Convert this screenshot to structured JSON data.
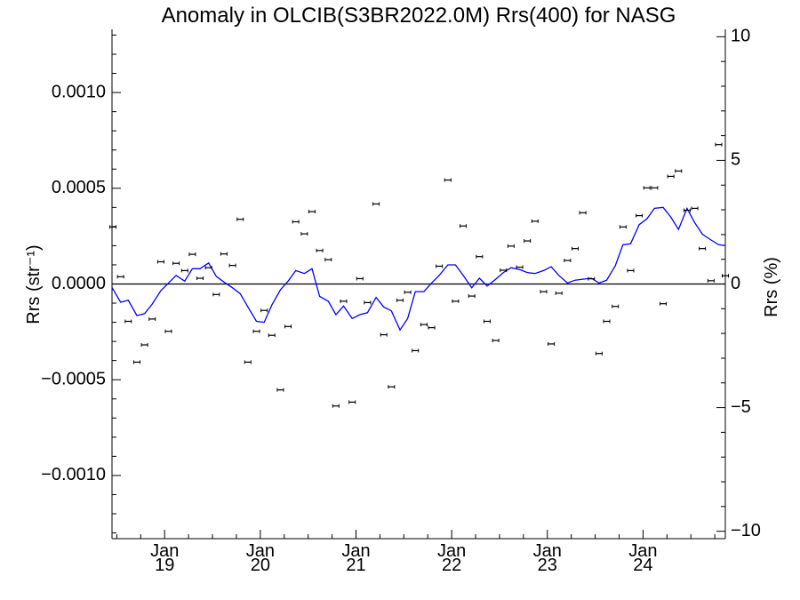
{
  "chart_data": {
    "type": "line",
    "title": "Anomaly in OLCIB(S3BR2022.0M) Rrs(400) for NASG",
    "ylabel": "Rrs (str⁻¹)",
    "ylabel_right": "Rrs (%)",
    "xlabel": "",
    "x_units": "decimal year (years 2018-2024)",
    "xlim": [
      2018.45,
      2024.86
    ],
    "ylim": [
      -0.00133,
      0.00133
    ],
    "ylim_right": [
      -10.3,
      10.3
    ],
    "x_ticks": [
      {
        "x": 2019.0,
        "label": "Jan",
        "sublabel": "19"
      },
      {
        "x": 2020.0,
        "label": "Jan",
        "sublabel": "20"
      },
      {
        "x": 2021.0,
        "label": "Jan",
        "sublabel": "21"
      },
      {
        "x": 2022.0,
        "label": "Jan",
        "sublabel": "22"
      },
      {
        "x": 2023.0,
        "label": "Jan",
        "sublabel": "23"
      },
      {
        "x": 2024.0,
        "label": "Jan",
        "sublabel": "24"
      }
    ],
    "y_ticks_left": [
      {
        "v": 0.001,
        "label": "0.0010"
      },
      {
        "v": 0.0005,
        "label": "0.0005"
      },
      {
        "v": 0.0,
        "label": "0.0000"
      },
      {
        "v": -0.0005,
        "label": "−0.0005"
      },
      {
        "v": -0.001,
        "label": "−0.0010"
      }
    ],
    "y_ticks_right": [
      {
        "v": 10,
        "label": "10"
      },
      {
        "v": 5,
        "label": "5"
      },
      {
        "v": 0,
        "label": "0"
      },
      {
        "v": -5,
        "label": "−5"
      },
      {
        "v": -10,
        "label": "−10"
      }
    ],
    "zero_line": true,
    "grid": false,
    "series": [
      {
        "style": "points-with-errorbars",
        "color": "#000000",
        "x": [
          2018.46,
          2018.54,
          2018.62,
          2018.71,
          2018.79,
          2018.87,
          2018.96,
          2019.04,
          2019.12,
          2019.21,
          2019.29,
          2019.37,
          2019.46,
          2019.54,
          2019.62,
          2019.71,
          2019.79,
          2019.87,
          2019.96,
          2020.04,
          2020.12,
          2020.21,
          2020.29,
          2020.37,
          2020.46,
          2020.54,
          2020.62,
          2020.71,
          2020.79,
          2020.87,
          2020.96,
          2021.04,
          2021.12,
          2021.21,
          2021.29,
          2021.37,
          2021.46,
          2021.54,
          2021.62,
          2021.71,
          2021.79,
          2021.87,
          2021.96,
          2022.04,
          2022.12,
          2022.21,
          2022.29,
          2022.37,
          2022.46,
          2022.54,
          2022.62,
          2022.71,
          2022.79,
          2022.87,
          2022.96,
          2023.04,
          2023.12,
          2023.21,
          2023.29,
          2023.37,
          2023.46,
          2023.54,
          2023.62,
          2023.71,
          2023.79,
          2023.87,
          2023.96,
          2024.04,
          2024.12,
          2024.21,
          2024.29,
          2024.37,
          2024.46,
          2024.54,
          2024.62,
          2024.71,
          2024.79,
          2024.86
        ],
        "y": [
          0.000298,
          3.8e-05,
          -0.000195,
          -0.000408,
          -0.000318,
          -0.000183,
          0.000116,
          -0.000247,
          0.000108,
          7e-05,
          0.000155,
          3e-05,
          8.5e-05,
          -5.5e-05,
          0.000157,
          9.7e-05,
          0.000338,
          -0.000408,
          -0.000247,
          -0.000138,
          -0.000268,
          -0.000553,
          -0.000222,
          0.000325,
          0.000262,
          0.000378,
          0.000175,
          0.000127,
          -0.000637,
          -9e-05,
          -0.000617,
          2.8e-05,
          -9.7e-05,
          0.000418,
          -0.000265,
          -0.000537,
          -8.5e-05,
          -4.3e-05,
          -0.000348,
          -0.000212,
          -0.000228,
          9.3e-05,
          0.000543,
          -9e-05,
          0.000303,
          -6.3e-05,
          0.000143,
          -0.000195,
          -0.000295,
          7.2e-05,
          0.000198,
          8.8e-05,
          0.000225,
          0.000328,
          -4e-05,
          -0.000313,
          -4.8e-05,
          0.000123,
          0.000185,
          0.000372,
          2.7e-05,
          -0.000363,
          -0.000195,
          -0.000117,
          0.000298,
          7e-05,
          0.000357,
          0.000502,
          0.000502,
          -0.000103,
          0.000562,
          0.00059,
          0.000385,
          0.000395,
          0.000185,
          1.7e-05,
          0.000728,
          4.3e-05
        ]
      },
      {
        "style": "line",
        "color": "#0000ff",
        "x": [
          2018.45,
          2018.54,
          2018.62,
          2018.71,
          2018.79,
          2018.87,
          2018.96,
          2019.04,
          2019.12,
          2019.21,
          2019.29,
          2019.37,
          2019.46,
          2019.54,
          2019.62,
          2019.71,
          2019.79,
          2019.87,
          2019.96,
          2020.04,
          2020.12,
          2020.21,
          2020.29,
          2020.37,
          2020.46,
          2020.54,
          2020.62,
          2020.71,
          2020.79,
          2020.87,
          2020.96,
          2021.04,
          2021.12,
          2021.21,
          2021.29,
          2021.37,
          2021.46,
          2021.54,
          2021.62,
          2021.71,
          2021.79,
          2021.87,
          2021.96,
          2022.04,
          2022.12,
          2022.21,
          2022.29,
          2022.37,
          2022.46,
          2022.54,
          2022.62,
          2022.71,
          2022.79,
          2022.87,
          2022.96,
          2023.04,
          2023.12,
          2023.21,
          2023.29,
          2023.37,
          2023.46,
          2023.54,
          2023.62,
          2023.71,
          2023.79,
          2023.87,
          2023.96,
          2024.04,
          2024.12,
          2024.21,
          2024.29,
          2024.37,
          2024.46,
          2024.54,
          2024.62,
          2024.71,
          2024.79,
          2024.86
        ],
        "y": [
          -1.8e-05,
          -9.5e-05,
          -8.5e-05,
          -0.000165,
          -0.000155,
          -0.000105,
          -3.5e-05,
          5e-06,
          4.5e-05,
          1.5e-05,
          8e-05,
          8e-05,
          0.00011,
          4e-05,
          1e-05,
          -2e-05,
          -5e-05,
          -0.00012,
          -0.000195,
          -0.0002,
          -0.00011,
          -3e-05,
          1.5e-05,
          7e-05,
          5.5e-05,
          8e-05,
          -6.5e-05,
          -9e-05,
          -0.00016,
          -0.000115,
          -0.00018,
          -0.00016,
          -0.00015,
          -7e-05,
          -0.00012,
          -0.00014,
          -0.00024,
          -0.00018,
          -4e-05,
          -4e-05,
          5e-06,
          4.5e-05,
          0.0001,
          0.0001,
          4.5e-05,
          -2e-05,
          3e-05,
          -1e-05,
          2.5e-05,
          6e-05,
          8.5e-05,
          7.5e-05,
          6e-05,
          5.5e-05,
          7e-05,
          9e-05,
          4.5e-05,
          5e-06,
          2e-05,
          2.5e-05,
          3e-05,
          5e-06,
          2e-05,
          9.5e-05,
          0.000205,
          0.00021,
          0.00031,
          0.00034,
          0.000395,
          0.0004,
          0.00035,
          0.000285,
          0.000395,
          0.00032,
          0.00026,
          0.00023,
          0.000205,
          0.0002
        ]
      }
    ]
  }
}
